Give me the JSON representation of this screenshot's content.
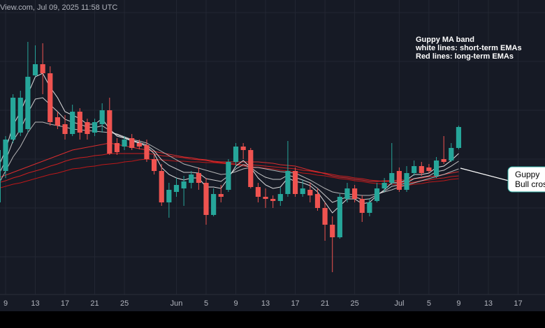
{
  "chart_data": {
    "type": "candlestick",
    "title": "View.com, Jul 09, 2025 11:58 UTC",
    "annotation": [
      "Guppy MA band",
      "white lines: short-term EMAs",
      "Red lines: long-term EMAs"
    ],
    "callout": [
      "Guppy",
      "Bull cros"
    ],
    "categories": [
      null,
      "9",
      null,
      null,
      null,
      "13",
      null,
      null,
      null,
      "17",
      null,
      null,
      null,
      "21",
      null,
      null,
      null,
      "25",
      null,
      null,
      null,
      null,
      null,
      null,
      "Jun",
      null,
      null,
      null,
      "5",
      null,
      null,
      null,
      "9",
      null,
      null,
      null,
      "13",
      null,
      null,
      null,
      "17",
      null,
      null,
      null,
      "21",
      null,
      null,
      null,
      "25",
      null,
      null,
      null,
      null,
      null,
      "Jul",
      null,
      null,
      null,
      "5",
      null,
      null,
      null,
      "9",
      null,
      null,
      null,
      "13",
      null,
      null,
      null,
      "17",
      null,
      null
    ],
    "open": [
      140,
      185,
      230,
      240,
      245,
      322,
      338,
      325,
      262,
      252,
      238,
      270,
      255,
      240,
      252,
      272,
      225,
      220,
      232,
      225,
      222,
      202,
      185,
      140,
      155,
      160,
      168,
      182,
      168,
      122,
      152,
      158,
      198,
      220,
      215,
      162,
      148,
      145,
      142,
      152,
      185,
      152,
      158,
      152,
      132,
      108,
      90,
      145,
      160,
      145,
      125,
      142,
      160,
      168,
      185,
      158,
      182,
      192,
      190,
      178,
      202,
      200,
      218,
      null,
      null,
      null,
      null,
      null,
      null,
      null,
      null,
      null,
      null
    ],
    "high": [
      225,
      235,
      295,
      300,
      370,
      365,
      368,
      335,
      270,
      265,
      280,
      275,
      260,
      260,
      282,
      290,
      232,
      235,
      238,
      230,
      230,
      208,
      195,
      168,
      175,
      178,
      185,
      190,
      175,
      160,
      165,
      202,
      225,
      225,
      218,
      168,
      160,
      150,
      162,
      228,
      190,
      172,
      168,
      160,
      140,
      120,
      152,
      168,
      165,
      150,
      145,
      168,
      175,
      225,
      190,
      192,
      200,
      198,
      195,
      205,
      235,
      225,
      250,
      null,
      null,
      null,
      null,
      null,
      null,
      null,
      null,
      null,
      null
    ],
    "low": [
      130,
      175,
      225,
      235,
      240,
      320,
      295,
      250,
      245,
      230,
      235,
      230,
      230,
      235,
      240,
      208,
      208,
      215,
      215,
      216,
      198,
      180,
      135,
      118,
      148,
      135,
      160,
      158,
      108,
      120,
      140,
      155,
      190,
      202,
      160,
      140,
      132,
      132,
      135,
      148,
      148,
      148,
      140,
      128,
      85,
      40,
      88,
      140,
      140,
      112,
      120,
      140,
      155,
      165,
      155,
      155,
      178,
      178,
      182,
      175,
      195,
      198,
      216,
      null,
      null,
      null,
      null,
      null,
      null,
      null,
      null,
      null,
      null
    ],
    "close": [
      215,
      230,
      290,
      290,
      320,
      338,
      325,
      255,
      250,
      238,
      270,
      240,
      238,
      255,
      272,
      210,
      212,
      230,
      218,
      220,
      202,
      185,
      140,
      158,
      165,
      170,
      180,
      168,
      122,
      152,
      148,
      198,
      220,
      215,
      162,
      148,
      145,
      142,
      152,
      185,
      152,
      160,
      150,
      132,
      108,
      90,
      148,
      160,
      145,
      125,
      140,
      160,
      168,
      182,
      158,
      182,
      192,
      182,
      185,
      200,
      198,
      218,
      248,
      null,
      null,
      null,
      null,
      null,
      null,
      null,
      null,
      null,
      null
    ],
    "up_color": "#26a69a",
    "down_color": "#ef5350",
    "series": [
      {
        "color": "#d01818",
        "values": [
          160,
          163,
          166,
          168,
          171,
          174,
          177,
          180,
          182,
          185,
          188,
          189,
          191,
          192,
          194,
          195,
          196,
          198,
          199,
          201,
          202,
          201,
          201,
          200,
          199,
          199,
          198,
          198,
          197,
          197,
          196,
          195,
          194,
          192,
          191,
          190,
          189,
          188,
          186,
          185,
          184,
          182,
          181,
          179,
          178,
          176,
          174,
          173,
          171,
          170,
          168,
          167,
          166,
          166,
          165,
          164,
          166,
          167,
          169,
          170,
          171,
          173,
          174,
          null,
          null,
          null,
          null,
          null,
          null,
          null,
          null,
          null,
          null
        ]
      },
      {
        "color": "#e02020",
        "values": [
          168,
          171,
          175,
          178,
          182,
          185,
          188,
          192,
          195,
          199,
          202,
          204,
          205,
          207,
          208,
          210,
          210,
          210,
          210,
          210,
          210,
          209,
          207,
          206,
          205,
          204,
          202,
          201,
          200,
          198,
          197,
          196,
          195,
          194,
          194,
          193,
          192,
          191,
          190,
          189,
          188,
          186,
          185,
          183,
          182,
          180,
          178,
          177,
          175,
          174,
          172,
          171,
          170,
          170,
          169,
          168,
          169,
          171,
          172,
          174,
          175,
          177,
          178,
          null,
          null,
          null,
          null,
          null,
          null,
          null,
          null,
          null,
          null
        ]
      },
      {
        "color": "#f03030",
        "values": [
          175,
          179,
          183,
          187,
          191,
          195,
          199,
          203,
          207,
          211,
          215,
          217,
          219,
          221,
          223,
          225,
          223,
          221,
          219,
          217,
          215,
          213,
          211,
          209,
          207,
          205,
          204,
          202,
          201,
          199,
          198,
          198,
          198,
          198,
          198,
          198,
          197,
          196,
          194,
          193,
          192,
          189,
          186,
          184,
          181,
          178,
          176,
          175,
          173,
          172,
          170,
          170,
          171,
          171,
          172,
          172,
          174,
          175,
          177,
          178,
          180,
          182,
          184,
          null,
          null,
          null,
          null,
          null,
          null,
          null,
          null,
          null,
          null
        ]
      },
      {
        "color": "#c8c8c8",
        "values": [
          165,
          185,
          205,
          220,
          240,
          255,
          255,
          252,
          250,
          248,
          245,
          244,
          243,
          242,
          241,
          240,
          238,
          234,
          230,
          228,
          225,
          219,
          213,
          207,
          201,
          195,
          192,
          189,
          186,
          183,
          180,
          181,
          184,
          188,
          190,
          190,
          188,
          186,
          184,
          183,
          182,
          177,
          172,
          166,
          160,
          155,
          153,
          152,
          151,
          150,
          150,
          152,
          155,
          158,
          162,
          165,
          168,
          171,
          174,
          177,
          180,
          184,
          188,
          null,
          null,
          null,
          null,
          null,
          null,
          null,
          null,
          null,
          null
        ]
      },
      {
        "color": "#e0e0e0",
        "values": [
          178,
          200,
          228,
          245,
          268,
          288,
          290,
          280,
          270,
          259,
          255,
          252,
          248,
          247,
          250,
          243,
          237,
          233,
          229,
          226,
          222,
          214,
          201,
          193,
          188,
          183,
          183,
          182,
          174,
          172,
          170,
          178,
          188,
          194,
          190,
          182,
          176,
          173,
          173,
          179,
          176,
          172,
          168,
          160,
          150,
          140,
          144,
          148,
          148,
          144,
          145,
          151,
          156,
          163,
          165,
          168,
          174,
          176,
          178,
          184,
          186,
          192,
          199,
          null,
          null,
          null,
          null,
          null,
          null,
          null,
          null,
          null,
          null
        ]
      },
      {
        "color": "#f4f4f4",
        "values": [
          190,
          215,
          250,
          270,
          295,
          320,
          325,
          305,
          290,
          270,
          265,
          260,
          252,
          252,
          260,
          245,
          235,
          232,
          228,
          225,
          220,
          210,
          190,
          180,
          175,
          172,
          175,
          175,
          162,
          162,
          160,
          175,
          192,
          200,
          190,
          175,
          165,
          160,
          162,
          175,
          170,
          168,
          164,
          155,
          140,
          125,
          135,
          145,
          145,
          138,
          140,
          150,
          158,
          168,
          168,
          172,
          180,
          180,
          182,
          190,
          192,
          200,
          210,
          null,
          null,
          null,
          null,
          null,
          null,
          null,
          null,
          null,
          null
        ]
      }
    ],
    "ylim": [
      0,
      410
    ]
  }
}
